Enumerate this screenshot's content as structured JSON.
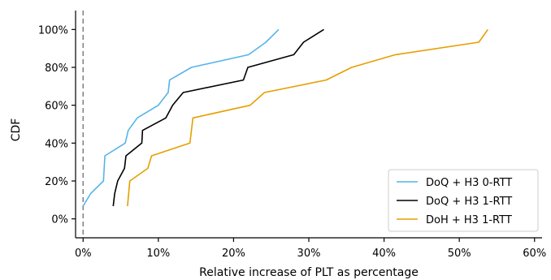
{
  "chart_data": {
    "type": "line",
    "xlabel": "Relative increase of PLT as percentage",
    "ylabel": "CDF",
    "xlim": [
      -1,
      61
    ],
    "ylim": [
      -10,
      110
    ],
    "x_ticks": [
      0,
      10,
      20,
      30,
      40,
      50,
      60
    ],
    "y_ticks": [
      0,
      20,
      40,
      60,
      80,
      100
    ],
    "x_tick_labels": [
      "0%",
      "10%",
      "20%",
      "30%",
      "40%",
      "50%",
      "60%"
    ],
    "y_tick_labels": [
      "0%",
      "20%",
      "40%",
      "60%",
      "80%",
      "100%"
    ],
    "grid": false,
    "legend_position": "lower-right",
    "reference_line": {
      "x": 0,
      "style": "dashed",
      "color": "#808080"
    },
    "series": [
      {
        "name": "DoQ + H3 0-RTT",
        "color": "#56B4E9",
        "points": [
          [
            0,
            6.7
          ],
          [
            1,
            13.3
          ],
          [
            2.7,
            20
          ],
          [
            2.9,
            33.3
          ],
          [
            5.6,
            40
          ],
          [
            6,
            46.7
          ],
          [
            7.2,
            53.3
          ],
          [
            10,
            60
          ],
          [
            11.3,
            66.7
          ],
          [
            11.5,
            73.3
          ],
          [
            14.4,
            80
          ],
          [
            22,
            86.7
          ],
          [
            24.3,
            93.3
          ],
          [
            26,
            100
          ]
        ]
      },
      {
        "name": "DoQ + H3 1-RTT",
        "color": "#000000",
        "points": [
          [
            4,
            6.7
          ],
          [
            4.2,
            13.3
          ],
          [
            4.6,
            20
          ],
          [
            5.5,
            26.7
          ],
          [
            5.7,
            33.3
          ],
          [
            7.8,
            40
          ],
          [
            7.9,
            46.7
          ],
          [
            11,
            53.3
          ],
          [
            11.9,
            60
          ],
          [
            13.3,
            66.7
          ],
          [
            21.3,
            73.3
          ],
          [
            21.9,
            80
          ],
          [
            28,
            86.7
          ],
          [
            29.3,
            93.3
          ],
          [
            32,
            100
          ]
        ]
      },
      {
        "name": "DoH + H3 1-RTT",
        "color": "#E69F00",
        "points": [
          [
            5.9,
            6.7
          ],
          [
            6.2,
            20
          ],
          [
            8.6,
            26.7
          ],
          [
            9.1,
            33.3
          ],
          [
            14.2,
            40
          ],
          [
            14.6,
            53.3
          ],
          [
            22.2,
            60
          ],
          [
            24.1,
            66.7
          ],
          [
            32.3,
            73.3
          ],
          [
            35.7,
            80
          ],
          [
            41.5,
            86.7
          ],
          [
            52.6,
            93.3
          ],
          [
            53.8,
            100
          ]
        ]
      }
    ]
  }
}
